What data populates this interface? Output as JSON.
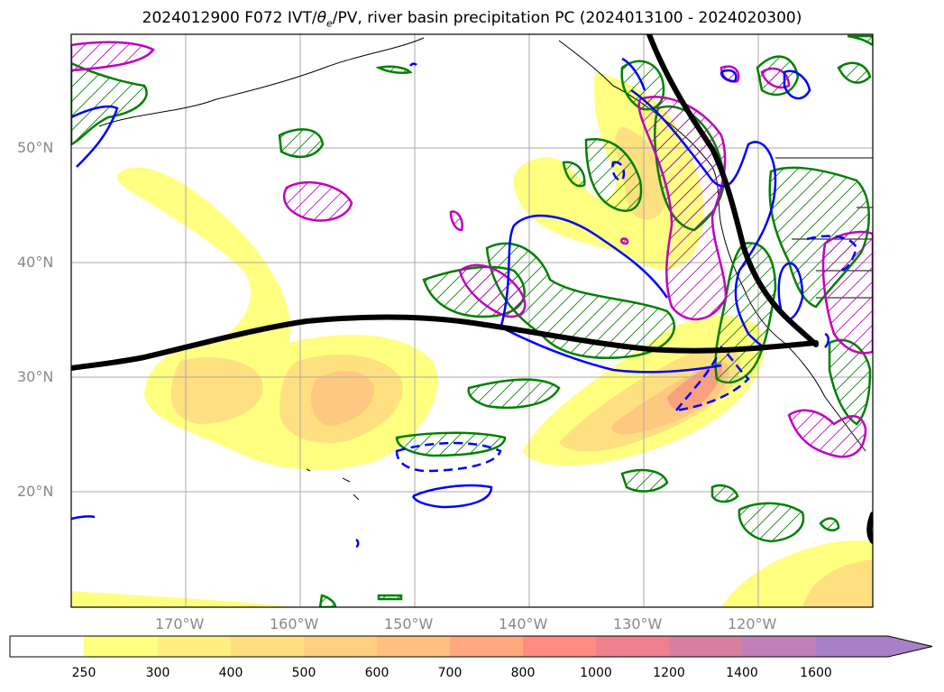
{
  "title": {
    "prefix": "2024012900 F072 IVT/",
    "theta": "θ",
    "theta_sub": "e",
    "suffix": "/PV, river basin precipitation PC (2024013100 - 2024020300)"
  },
  "map": {
    "projection": "lat-lon",
    "lon_range": [
      -180,
      -110
    ],
    "lat_range": [
      10,
      60
    ],
    "grid": true,
    "colors": {
      "ivt_fill": [
        "#ffff80",
        "#ffef80",
        "#ffdf80",
        "#ffcf80",
        "#ffbf80",
        "#ffa880",
        "#ff8c80",
        "#f0808c",
        "#d880a0",
        "#c080b8",
        "#a880c8"
      ],
      "contour_green": "#008000",
      "contour_blue": "#0000ff",
      "contour_magenta": "#c000c0",
      "jet_line": "#000000",
      "coastline": "#000000"
    }
  },
  "axes": {
    "lat_ticks": [
      {
        "value": 50,
        "label": "50°N"
      },
      {
        "value": 40,
        "label": "40°N"
      },
      {
        "value": 30,
        "label": "30°N"
      },
      {
        "value": 20,
        "label": "20°N"
      }
    ],
    "lon_ticks": [
      {
        "value": -170,
        "label": "170°W"
      },
      {
        "value": -160,
        "label": "160°W"
      },
      {
        "value": -150,
        "label": "150°W"
      },
      {
        "value": -140,
        "label": "140°W"
      },
      {
        "value": -130,
        "label": "130°W"
      },
      {
        "value": -120,
        "label": "120°W"
      }
    ]
  },
  "colorbar": {
    "levels": [
      "250",
      "300",
      "400",
      "500",
      "600",
      "700",
      "800",
      "1000",
      "1200",
      "1400",
      "1600"
    ],
    "extend": "max"
  }
}
